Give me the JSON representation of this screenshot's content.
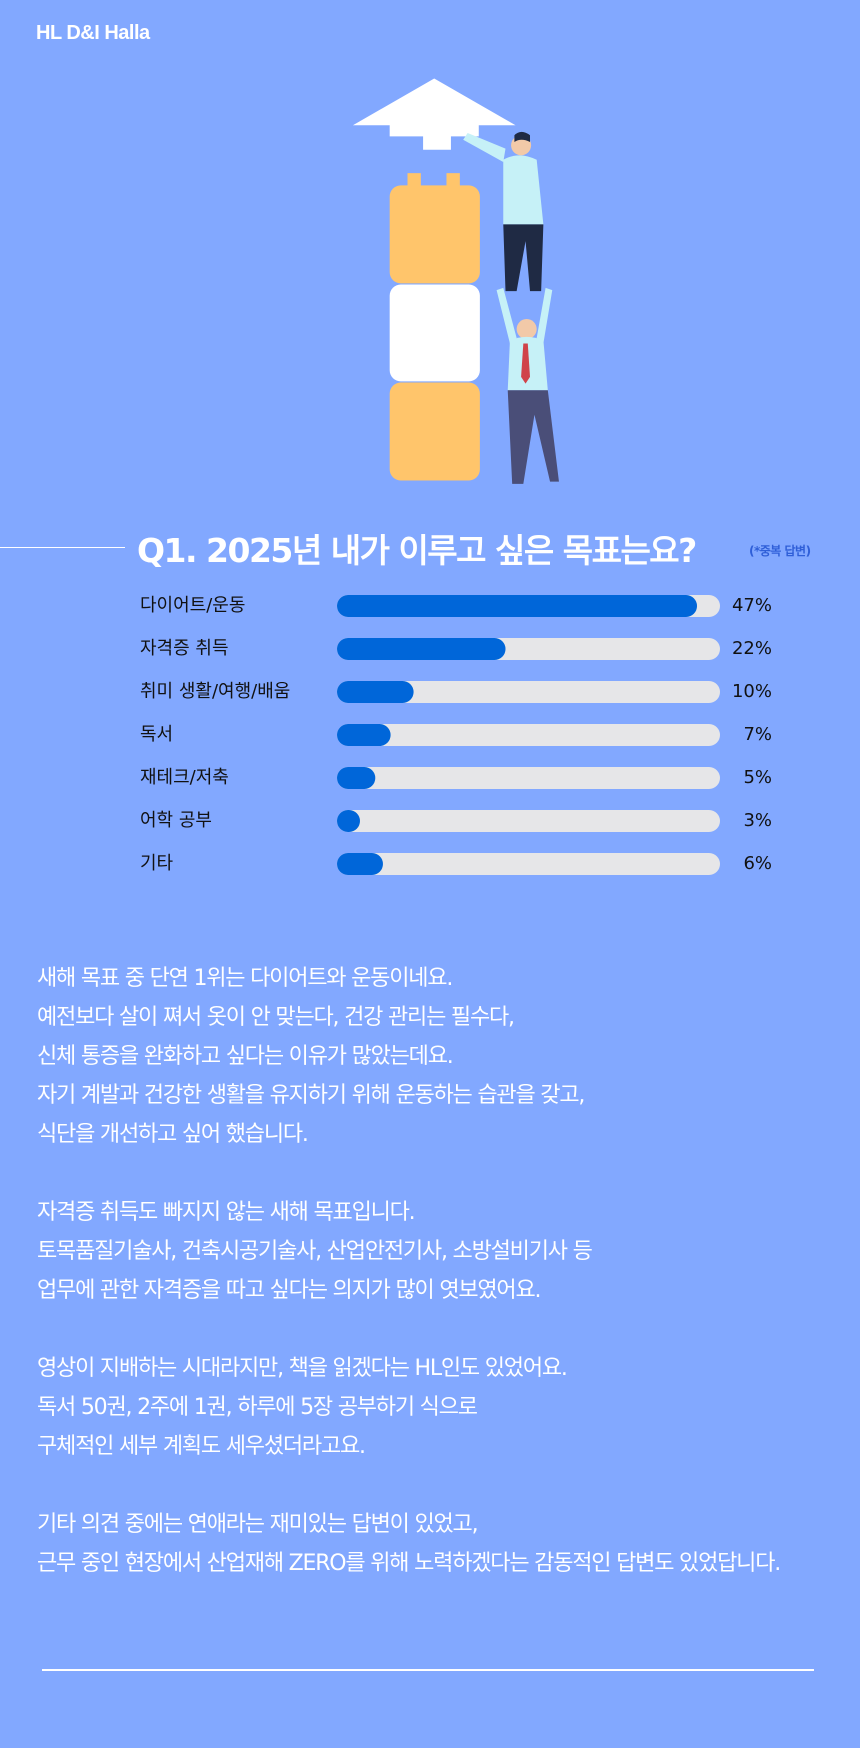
{
  "header": {
    "logo": "HL D&I Halla"
  },
  "chart_data": {
    "type": "bar",
    "orientation": "horizontal",
    "title": "Q1. 2025년 내가 이루고 싶은 목표는요?",
    "subtitle": "(*중복 답변)",
    "categories": [
      "다이어트/운동",
      "자격증 취득",
      "취미 생활/여행/배움",
      "독서",
      "재테크/저축",
      "어학 공부",
      "기타"
    ],
    "values": [
      47,
      22,
      10,
      7,
      5,
      3,
      6
    ],
    "value_labels": [
      "47%",
      "22%",
      "10%",
      "7%",
      "5%",
      "3%",
      "6%"
    ],
    "xlim": [
      0,
      50
    ],
    "color": "#0066d9",
    "track_color": "#e6e6e8"
  },
  "paragraphs": [
    [
      "새해 목표 중 단연 1위는 다이어트와 운동이네요.",
      "예전보다 살이 쪄서 옷이 안 맞는다, 건강 관리는 필수다,",
      "신체 통증을 완화하고 싶다는 이유가 많았는데요.",
      "자기 계발과 건강한 생활을 유지하기 위해 운동하는 습관을 갖고,",
      "식단을 개선하고 싶어 했습니다."
    ],
    [
      "자격증 취득도 빠지지 않는 새해 목표입니다.",
      "토목품질기술사, 건축시공기술사, 산업안전기사, 소방설비기사 등",
      "업무에 관한 자격증을 따고 싶다는 의지가 많이 엿보였어요."
    ],
    [
      "영상이 지배하는 시대라지만, 책을 읽겠다는 HL인도 있었어요.",
      "독서 50권, 2주에 1권, 하루에 5장 공부하기 식으로",
      "구체적인 세부 계획도 세우셨더라고요."
    ],
    [
      "기타 의견 중에는 연애라는 재미있는 답변이 있었고,",
      "근무 중인 현장에서 산업재해 ZERO를 위해 노력하겠다는 감동적인 답변도 있었답니다."
    ]
  ]
}
